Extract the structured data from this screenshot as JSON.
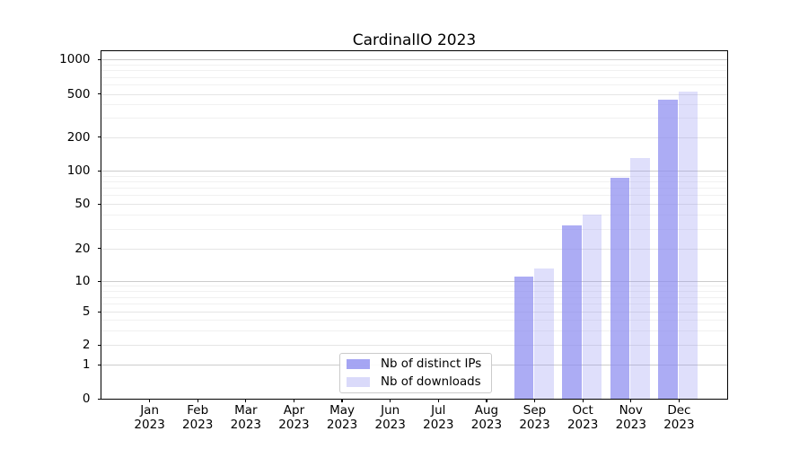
{
  "title": "CardinalIO 2023",
  "colors": {
    "background": "#ffffff",
    "spine": "#000000",
    "text": "#000000",
    "series_base": "#8c8cf0",
    "bar_strong_rendered": "#acacf4",
    "bar_light_rendered": "#dedefb",
    "grid_major": "rgba(0,0,0,0.20)",
    "grid_mid": "rgba(0,0,0,0.10)",
    "grid_minor": "rgba(0,0,0,0.055)"
  },
  "legend": {
    "items": [
      {
        "label": "Nb of distinct IPs",
        "swatch_color": "#8c8cf0",
        "swatch_opacity": 0.78
      },
      {
        "label": "Nb of downloads",
        "swatch_color": "#8c8cf0",
        "swatch_opacity": 0.32
      }
    ]
  },
  "chart_data": {
    "type": "bar",
    "title": "CardinalIO 2023",
    "categories": [
      "Jan 2023",
      "Feb 2023",
      "Mar 2023",
      "Apr 2023",
      "May 2023",
      "Jun 2023",
      "Jul 2023",
      "Aug 2023",
      "Sep 2023",
      "Oct 2023",
      "Nov 2023",
      "Dec 2023"
    ],
    "series": [
      {
        "name": "Nb of distinct IPs",
        "color": "#8c8cf0",
        "opacity": 0.72,
        "values": [
          0,
          0,
          0,
          0,
          0,
          0,
          0,
          0,
          11,
          32,
          87,
          440
        ]
      },
      {
        "name": "Nb of downloads",
        "color": "#8c8cf0",
        "opacity": 0.28,
        "values": [
          0,
          0,
          0,
          0,
          0,
          0,
          0,
          0,
          13,
          40,
          130,
          520
        ]
      }
    ],
    "xlabel": "",
    "ylabel": "",
    "yscale": "symlog",
    "yticks": [
      0,
      1,
      2,
      5,
      10,
      20,
      50,
      100,
      200,
      500,
      1000
    ],
    "ylim": [
      0,
      1000
    ],
    "grid": "horizontal, log minor gridlines",
    "legend_position": "lower center inside axes"
  }
}
